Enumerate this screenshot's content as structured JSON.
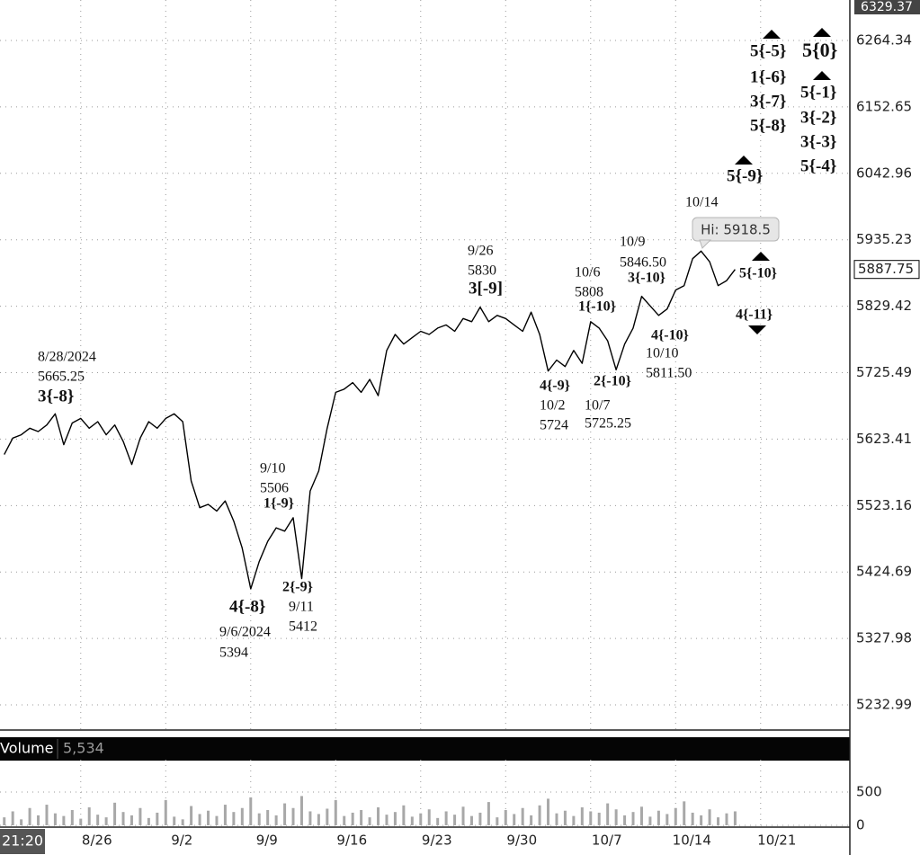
{
  "chart_data": [
    {
      "type": "line",
      "log_scale": true,
      "grid": true,
      "categories": [
        null,
        null,
        null,
        null,
        null,
        null,
        null,
        null,
        null,
        "8/26",
        null,
        null,
        null,
        null,
        null,
        null,
        null,
        null,
        null,
        "9/2",
        null,
        null,
        null,
        null,
        null,
        null,
        null,
        null,
        null,
        "9/9",
        null,
        null,
        null,
        null,
        null,
        null,
        null,
        null,
        null,
        "9/16",
        null,
        null,
        null,
        null,
        null,
        null,
        null,
        null,
        null,
        "9/23",
        null,
        null,
        null,
        null,
        null,
        null,
        null,
        null,
        null,
        "9/30",
        null,
        null,
        null,
        null,
        null,
        null,
        null,
        null,
        null,
        "10/7",
        null,
        null,
        null,
        null,
        null,
        null,
        null,
        null,
        null,
        "10/14",
        null,
        null,
        null,
        null,
        null,
        null,
        null,
        null,
        null,
        "10/21",
        null,
        null,
        null,
        null,
        null,
        null,
        null,
        null,
        null,
        null
      ],
      "series": [
        {
          "color": "#000000",
          "values": [
            5600,
            5625,
            5630,
            5640,
            5635,
            5645,
            5662,
            5615,
            5648,
            5655,
            5640,
            5650,
            5630,
            5645,
            5620,
            5585,
            5625,
            5650,
            5640,
            5655,
            5662,
            5650,
            5560,
            5520,
            5525,
            5515,
            5530,
            5500,
            5460,
            5400,
            5440,
            5470,
            5490,
            5485,
            5505,
            5415,
            5545,
            5575,
            5640,
            5695,
            5700,
            5710,
            5695,
            5715,
            5690,
            5760,
            5785,
            5770,
            5780,
            5790,
            5785,
            5795,
            5800,
            5790,
            5810,
            5805,
            5828,
            5805,
            5815,
            5810,
            5800,
            5790,
            5820,
            5785,
            5728,
            5745,
            5735,
            5760,
            5740,
            5805,
            5795,
            5775,
            5730,
            5770,
            5795,
            5845,
            5830,
            5815,
            5825,
            5855,
            5862,
            5905,
            5917,
            5900,
            5862,
            5870,
            5887.75,
            null,
            null,
            null,
            null,
            null,
            null,
            null,
            null,
            null,
            null,
            null,
            null,
            null
          ]
        }
      ],
      "ylim": [
        5197.5,
        6333.3
      ],
      "yticks": [
        5232.99,
        5327.98,
        5424.69,
        5523.16,
        5623.41,
        5725.49,
        5829.42,
        5935.23,
        6042.96,
        6152.65,
        6264.34
      ],
      "top_price": 6329.37,
      "last_price": 5887.75,
      "hi_label": "Hi: 5918.5",
      "time_label": "21:20",
      "annotations": [
        "8/28/2024",
        "5665.25",
        "3{-8}",
        "9/10",
        "5506",
        "1{-9}",
        "4{-8}",
        "9/6/2024",
        "5394",
        "2{-9}",
        "9/11",
        "5412",
        "9/26",
        "5830",
        "3[-9]",
        "10/6",
        "5808",
        "1{-10}",
        "10/9",
        "5846.50",
        "3{-10}",
        "4{-9}",
        "10/2",
        "5724",
        "2{-10}",
        "10/7",
        "5725.25",
        "4{-10}",
        "10/10",
        "5811.50",
        "10/14",
        "5{-10}",
        "4{-11}",
        "5{-9}",
        "5{-5}",
        "1{-6}",
        "3{-7}",
        "5{-8}",
        "5{0}",
        "5{-1}",
        "3{-2}",
        "3{-3}",
        "5{-4}"
      ]
    },
    {
      "type": "bar",
      "title": "Volume",
      "last_value": "5,534",
      "color": "#a8a8a8",
      "series": [
        {
          "values": [
            120,
            210,
            90,
            260,
            150,
            310,
            180,
            140,
            230,
            100,
            270,
            160,
            120,
            340,
            200,
            150,
            260,
            110,
            190,
            380,
            130,
            90,
            290,
            170,
            220,
            140,
            310,
            200,
            260,
            420,
            180,
            230,
            150,
            330,
            260,
            440,
            210,
            170,
            250,
            380,
            140,
            190,
            230,
            120,
            270,
            160,
            200,
            300,
            130,
            180,
            240,
            110,
            210,
            160,
            280,
            140,
            190,
            350,
            120,
            230,
            170,
            260,
            150,
            300,
            400,
            180,
            220,
            140,
            270,
            210,
            190,
            330,
            240,
            150,
            200,
            280,
            130,
            220,
            170,
            260,
            360,
            190,
            150,
            240,
            120,
            180,
            210,
            null,
            null,
            null,
            null,
            null,
            null,
            null,
            null,
            null,
            null,
            null,
            null,
            null
          ]
        }
      ],
      "ylim": [
        0,
        986
      ],
      "yticks": [
        0,
        500
      ]
    }
  ]
}
